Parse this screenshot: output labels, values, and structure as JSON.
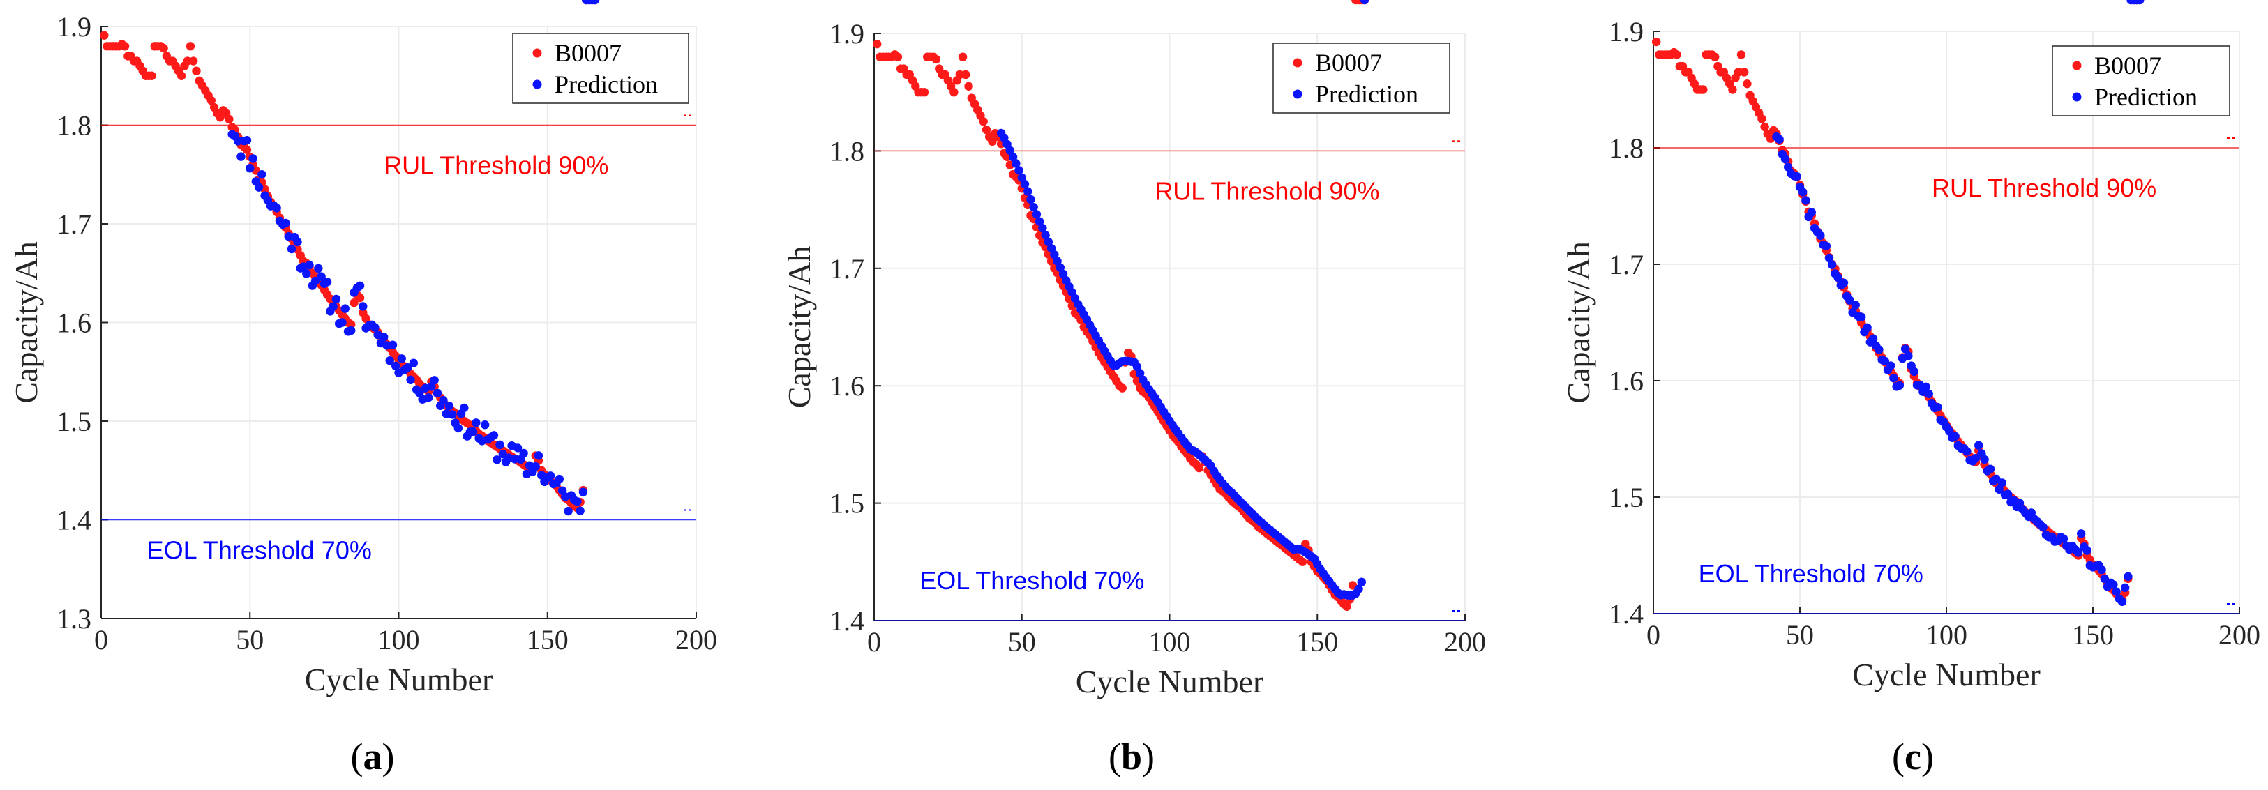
{
  "chart_data": [
    {
      "id": "a",
      "type": "scatter",
      "panel_label": "(a)",
      "panel_letter": "a",
      "xlabel": "Cycle Number",
      "ylabel": "Capacity/Ah",
      "xlim": [
        0,
        200
      ],
      "ylim": [
        1.3,
        1.9
      ],
      "xticks": [
        0,
        50,
        100,
        150,
        200
      ],
      "yticks": [
        1.3,
        1.4,
        1.5,
        1.6,
        1.7,
        1.8,
        1.9
      ],
      "legend": [
        "B0007",
        "Prediction"
      ],
      "legend_position": "top-right",
      "thresholds": [
        {
          "label": "RUL Threshold 90%",
          "value": 1.8,
          "color": "#ff0000"
        },
        {
          "label": "EOL Threshold 70%",
          "value": 1.4,
          "color": "#0000ff"
        }
      ],
      "prediction_start": 44,
      "prediction_noise": 0.014,
      "seed": 11
    },
    {
      "id": "b",
      "type": "scatter",
      "panel_label": "(b)",
      "panel_letter": "b",
      "xlabel": "Cycle Number",
      "ylabel": "Capacity/Ah",
      "xlim": [
        0,
        200
      ],
      "ylim": [
        1.4,
        1.9
      ],
      "xticks": [
        0,
        50,
        100,
        150,
        200
      ],
      "yticks": [
        1.4,
        1.5,
        1.6,
        1.7,
        1.8,
        1.9
      ],
      "legend": [
        "B0007",
        "Prediction"
      ],
      "legend_position": "top-right",
      "thresholds": [
        {
          "label": "RUL Threshold 90%",
          "value": 1.8,
          "color": "#ff0000"
        },
        {
          "label": "EOL Threshold 70%",
          "value": 1.4,
          "color": "#0000ff"
        }
      ],
      "prediction_start": 43,
      "prediction_noise": 0.0,
      "prediction_offset": 0.012,
      "seed": 23
    },
    {
      "id": "c",
      "type": "scatter",
      "panel_label": "(c)",
      "panel_letter": "c",
      "xlabel": "Cycle Number",
      "ylabel": "Capacity/Ah",
      "xlim": [
        0,
        200
      ],
      "ylim": [
        1.4,
        1.9
      ],
      "xticks": [
        0,
        50,
        100,
        150,
        200
      ],
      "yticks": [
        1.4,
        1.5,
        1.6,
        1.7,
        1.8,
        1.9
      ],
      "legend": [
        "B0007",
        "Prediction"
      ],
      "legend_position": "top-right",
      "thresholds": [
        {
          "label": "RUL Threshold 90%",
          "value": 1.8,
          "color": "#ff0000"
        },
        {
          "label": "EOL Threshold 70%",
          "value": 1.4,
          "color": "#0000ff"
        }
      ],
      "prediction_start": 42,
      "prediction_noise": 0.005,
      "seed": 37
    }
  ],
  "series_colors": {
    "actual": "#ff1a1a",
    "prediction": "#0a14ff"
  },
  "b0007_cycles": [
    1,
    2,
    3,
    4,
    5,
    6,
    7,
    8,
    9,
    10,
    11,
    12,
    13,
    14,
    15,
    16,
    17,
    18,
    19,
    20,
    21,
    22,
    23,
    24,
    25,
    26,
    27,
    28,
    29,
    30,
    31,
    32,
    33,
    34,
    35,
    36,
    37,
    38,
    39,
    40,
    41,
    42,
    43,
    44,
    45,
    46,
    47,
    48,
    49,
    50,
    51,
    52,
    53,
    54,
    55,
    56,
    57,
    58,
    59,
    60,
    61,
    62,
    63,
    64,
    65,
    66,
    67,
    68,
    69,
    70,
    71,
    72,
    73,
    74,
    75,
    76,
    77,
    78,
    79,
    80,
    81,
    82,
    83,
    84,
    85,
    86,
    87,
    88,
    89,
    90,
    91,
    92,
    93,
    94,
    95,
    96,
    97,
    98,
    99,
    100,
    101,
    102,
    103,
    104,
    105,
    106,
    107,
    108,
    109,
    110,
    111,
    112,
    113,
    114,
    115,
    116,
    117,
    118,
    119,
    120,
    121,
    122,
    123,
    124,
    125,
    126,
    127,
    128,
    129,
    130,
    131,
    132,
    133,
    134,
    135,
    136,
    137,
    138,
    139,
    140,
    141,
    142,
    143,
    144,
    145,
    146,
    147,
    148,
    149,
    150,
    151,
    152,
    153,
    154,
    155,
    156,
    157,
    158,
    159,
    160,
    161,
    162,
    163,
    164,
    165,
    166
  ],
  "b0007_capacity": [
    1.891,
    1.88,
    1.88,
    1.88,
    1.88,
    1.88,
    1.882,
    1.88,
    1.87,
    1.87,
    1.865,
    1.865,
    1.86,
    1.855,
    1.85,
    1.85,
    1.85,
    1.88,
    1.88,
    1.88,
    1.878,
    1.87,
    1.865,
    1.865,
    1.86,
    1.855,
    1.85,
    1.86,
    1.865,
    1.88,
    1.865,
    1.855,
    1.845,
    1.84,
    1.835,
    1.83,
    1.825,
    1.818,
    1.812,
    1.808,
    1.815,
    1.812,
    1.806,
    1.798,
    1.795,
    1.788,
    1.78,
    1.778,
    1.775,
    1.768,
    1.76,
    1.754,
    1.745,
    1.742,
    1.735,
    1.728,
    1.722,
    1.718,
    1.712,
    1.706,
    1.7,
    1.696,
    1.69,
    1.685,
    1.68,
    1.674,
    1.668,
    1.662,
    1.66,
    1.656,
    1.65,
    1.646,
    1.643,
    1.638,
    1.633,
    1.628,
    1.624,
    1.62,
    1.616,
    1.612,
    1.608,
    1.604,
    1.6,
    1.598,
    1.62,
    1.628,
    1.625,
    1.61,
    1.604,
    1.598,
    1.595,
    1.593,
    1.59,
    1.586,
    1.582,
    1.578,
    1.574,
    1.57,
    1.566,
    1.562,
    1.558,
    1.555,
    1.552,
    1.548,
    1.545,
    1.542,
    1.538,
    1.535,
    1.533,
    1.53,
    1.54,
    1.535,
    1.528,
    1.524,
    1.52,
    1.516,
    1.512,
    1.51,
    1.508,
    1.505,
    1.502,
    1.5,
    1.498,
    1.496,
    1.493,
    1.49,
    1.487,
    1.485,
    1.483,
    1.48,
    1.478,
    1.476,
    1.474,
    1.472,
    1.47,
    1.468,
    1.466,
    1.464,
    1.462,
    1.46,
    1.458,
    1.456,
    1.454,
    1.452,
    1.45,
    1.465,
    1.46,
    1.45,
    1.446,
    1.442,
    1.44,
    1.437,
    1.434,
    1.43,
    1.426,
    1.422,
    1.42,
    1.417,
    1.414,
    1.412,
    1.418,
    1.43
  ]
}
